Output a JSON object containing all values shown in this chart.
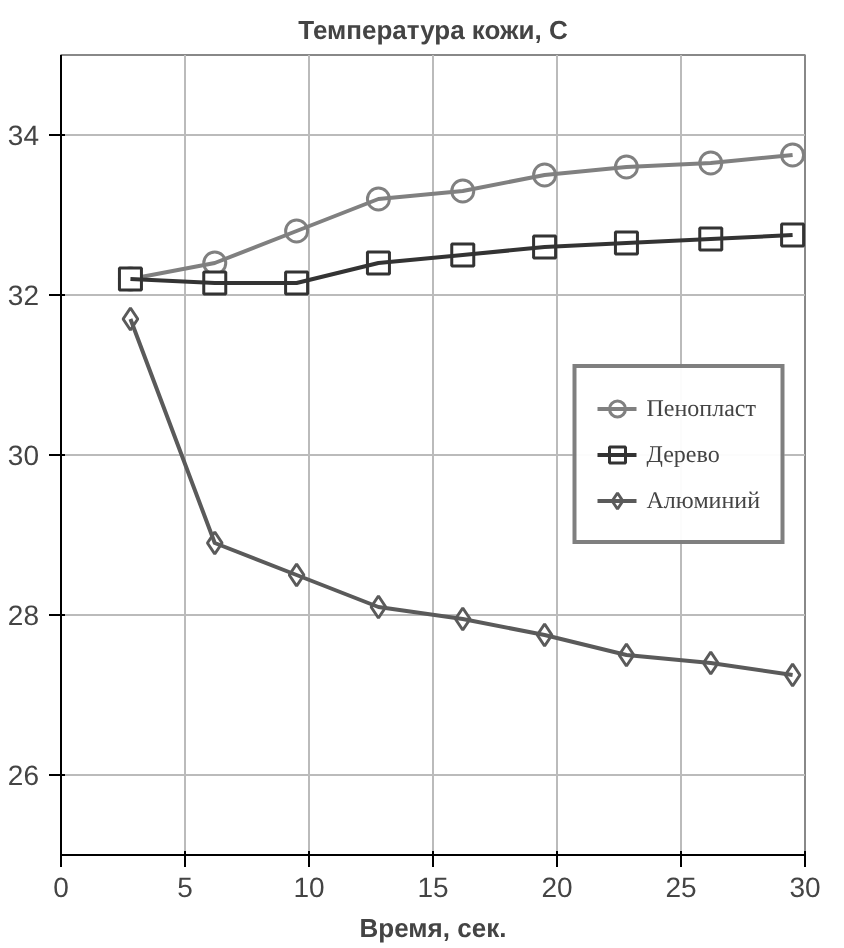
{
  "chart_data": {
    "type": "line",
    "title": "Температура кожи, С",
    "xlabel": "Время, сек.",
    "xlim": [
      0,
      30
    ],
    "xticks": [
      0,
      5,
      10,
      15,
      20,
      25,
      30
    ],
    "ylim": [
      25,
      35
    ],
    "yticks": [
      26,
      28,
      30,
      32,
      34
    ],
    "grid": true,
    "legend": "right",
    "series": [
      {
        "name": "Пенопласт",
        "color": "#808080",
        "marker": "circle",
        "x": [
          2.8,
          6.2,
          9.5,
          12.8,
          16.2,
          19.5,
          22.8,
          26.2,
          29.5
        ],
        "values": [
          32.2,
          32.4,
          32.8,
          33.2,
          33.3,
          33.5,
          33.6,
          33.65,
          33.75
        ]
      },
      {
        "name": "Дерево",
        "color": "#333333",
        "marker": "square",
        "x": [
          2.8,
          6.2,
          9.5,
          12.8,
          16.2,
          19.5,
          22.8,
          26.2,
          29.5
        ],
        "values": [
          32.2,
          32.15,
          32.15,
          32.4,
          32.5,
          32.6,
          32.65,
          32.7,
          32.75
        ]
      },
      {
        "name": "Алюминий",
        "color": "#5a5a5a",
        "marker": "diamond",
        "x": [
          2.8,
          6.2,
          9.5,
          12.8,
          16.2,
          19.5,
          22.8,
          26.2,
          29.5
        ],
        "values": [
          31.7,
          28.9,
          28.5,
          28.1,
          27.95,
          27.75,
          27.5,
          27.4,
          27.25
        ]
      }
    ]
  }
}
